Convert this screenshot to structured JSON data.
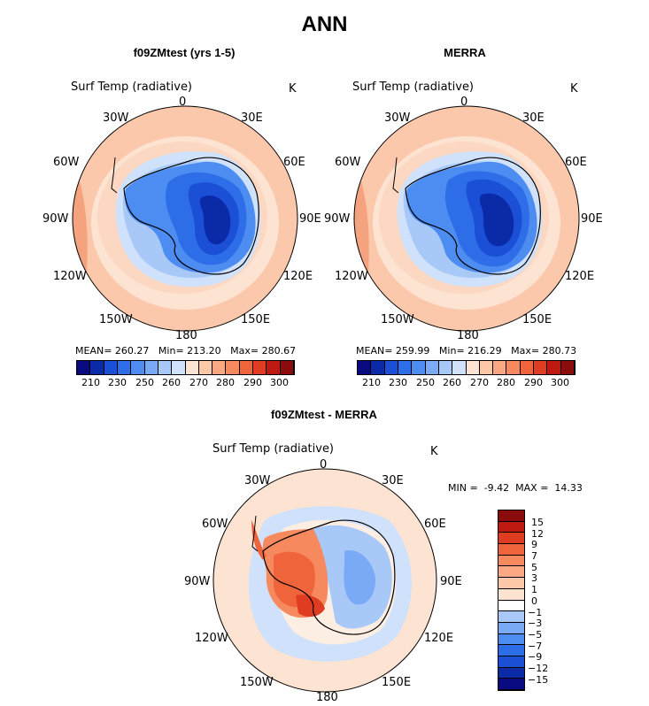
{
  "page_title": "ANN",
  "colors": {
    "abs_scale": [
      "#0a0a80",
      "#0a2aa8",
      "#1a4fd6",
      "#2d6ee8",
      "#4d8df2",
      "#7aaaf5",
      "#a8c8f7",
      "#d0e2fb",
      "#fde3d2",
      "#fcc8a8",
      "#fba882",
      "#f7895e",
      "#f0643c",
      "#e03c22",
      "#bf1a12",
      "#8a0c0c"
    ],
    "diff_scale": [
      "#0a0a80",
      "#0a2aa8",
      "#1a4fd6",
      "#2d6ee8",
      "#4d8df2",
      "#7aaaf5",
      "#a8c8f7",
      "#ffffff",
      "#fde3d2",
      "#fcc8a8",
      "#fba882",
      "#f7895e",
      "#f0643c",
      "#e03c22",
      "#bf1a12",
      "#8a0c0c"
    ],
    "map_outline": "#000000"
  },
  "panels": [
    {
      "title": "f09ZMtest (yrs 1-5)",
      "variable": "Surf Temp (radiative)",
      "unit": "K",
      "stats": {
        "mean_label": "MEAN=",
        "mean": "260.27",
        "min_label": "Min=",
        "min": "213.20",
        "max_label": "Max=",
        "max": "280.67"
      },
      "colorbar_ticks": [
        "210",
        "230",
        "250",
        "260",
        "270",
        "280",
        "290",
        "300"
      ]
    },
    {
      "title": "MERRA",
      "variable": "Surf Temp (radiative)",
      "unit": "K",
      "stats": {
        "mean_label": "MEAN=",
        "mean": "259.99",
        "min_label": "Min=",
        "min": "216.29",
        "max_label": "Max=",
        "max": "280.73"
      },
      "colorbar_ticks": [
        "210",
        "230",
        "250",
        "260",
        "270",
        "280",
        "290",
        "300"
      ]
    }
  ],
  "diff_panel": {
    "title": "f09ZMtest - MERRA",
    "variable": "Surf Temp (radiative)",
    "unit": "K",
    "stats": {
      "min_label": "MIN =",
      "min": "-9.42",
      "max_label": "MAX =",
      "max": "14.33"
    },
    "colorbar_ticks": [
      "15",
      "12",
      "9",
      "7",
      "5",
      "3",
      "1",
      "0",
      "−1",
      "−3",
      "−5",
      "−7",
      "−9",
      "−12",
      "−15"
    ]
  },
  "longitude_labels": [
    "0",
    "30E",
    "60E",
    "90E",
    "120E",
    "150E",
    "180",
    "150W",
    "120W",
    "90W",
    "60W",
    "30W"
  ]
}
